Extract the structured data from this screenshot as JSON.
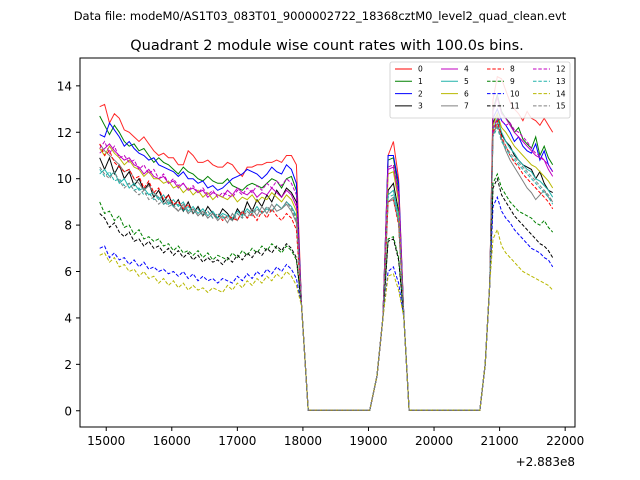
{
  "figure": {
    "suptitle": "Data file: modeM0/AS1T03_083T01_9000002722_18368cztM0_level2_quad_clean.evt"
  },
  "chart_data": {
    "type": "line",
    "title": "Quadrant 2 module wise count rates with 100.0s bins.",
    "xlabel": "",
    "ylabel": "",
    "x_offset_text": "+2.883e8",
    "xlim": [
      14600,
      22150
    ],
    "ylim": [
      -0.7,
      15.2
    ],
    "xticks": [
      15000,
      16000,
      17000,
      18000,
      19000,
      20000,
      21000,
      22000
    ],
    "yticks": [
      0,
      2,
      4,
      6,
      8,
      10,
      12,
      14
    ],
    "grid": false,
    "legend": {
      "placement": "top-right",
      "columns": 4
    },
    "series": [
      {
        "name": "0",
        "color": "#ff0000",
        "dash": "solid",
        "seg1": [
          13.1,
          13.2,
          12.4,
          12.8,
          12.6,
          12.1,
          12.0,
          11.8,
          11.6,
          11.8,
          11.5,
          11.2,
          11.0,
          11.1,
          10.9,
          10.9,
          10.6,
          10.6,
          11.2,
          11.0,
          10.7,
          10.7,
          10.8,
          10.6,
          10.5,
          10.5,
          10.7,
          10.6,
          10.3,
          10.1,
          10.5,
          10.5,
          10.6,
          10.6,
          10.7,
          10.7,
          10.8,
          10.7,
          11.0,
          11.0,
          10.6
        ],
        "peak": [
          11.0,
          11.6,
          10.0
        ],
        "seg3": [
          13.4,
          14.4,
          14.3,
          13.8,
          13.3,
          13.0,
          12.8,
          12.5,
          12.9,
          12.6,
          12.5,
          12.3,
          12.6,
          12.3,
          12.0
        ]
      },
      {
        "name": "1",
        "color": "#008000",
        "dash": "solid",
        "seg1": [
          12.7,
          12.3,
          11.9,
          12.3,
          12.0,
          11.6,
          11.4,
          11.5,
          11.2,
          11.3,
          11.0,
          10.7,
          10.9,
          10.7,
          10.6,
          10.4,
          10.2,
          10.5,
          10.3,
          10.2,
          10.0,
          9.9,
          10.1,
          9.9,
          9.8,
          9.8,
          10.0,
          9.7,
          9.6,
          9.5,
          9.7,
          9.8,
          9.7,
          9.6,
          9.8,
          10.0,
          9.9,
          9.6,
          10.0,
          10.1,
          9.5
        ],
        "peak": [
          10.8,
          10.9,
          9.5
        ],
        "seg3": [
          13.0,
          13.6,
          12.9,
          12.6,
          12.4,
          12.0,
          12.2,
          11.7,
          11.5,
          11.3,
          11.8,
          11.0,
          11.4,
          10.9,
          10.6
        ]
      },
      {
        "name": "2",
        "color": "#0000ff",
        "dash": "solid",
        "seg1": [
          11.9,
          11.8,
          12.4,
          12.1,
          11.8,
          11.4,
          11.6,
          11.3,
          11.1,
          11.0,
          10.8,
          10.9,
          10.6,
          10.5,
          10.4,
          10.3,
          10.1,
          10.3,
          10.0,
          10.0,
          9.8,
          9.9,
          9.6,
          9.7,
          9.5,
          9.6,
          9.8,
          10.0,
          10.1,
          10.2,
          10.4,
          10.3,
          10.2,
          10.0,
          10.2,
          10.5,
          10.3,
          10.2,
          10.6,
          10.4,
          9.8
        ],
        "peak": [
          11.0,
          11.0,
          9.8
        ],
        "seg3": [
          12.6,
          13.0,
          12.5,
          12.3,
          12.0,
          11.6,
          11.8,
          11.4,
          11.2,
          11.1,
          11.5,
          10.8,
          11.2,
          10.6,
          10.3
        ]
      },
      {
        "name": "3",
        "color": "#000000",
        "dash": "solid",
        "seg1": [
          10.9,
          10.4,
          10.9,
          10.2,
          10.6,
          10.0,
          10.3,
          9.7,
          10.0,
          9.5,
          9.8,
          9.2,
          9.5,
          9.0,
          9.3,
          8.8,
          9.1,
          8.6,
          9.0,
          8.5,
          8.8,
          8.4,
          8.8,
          8.5,
          8.3,
          8.7,
          8.5,
          8.2,
          8.7,
          8.4,
          9.0,
          8.6,
          9.1,
          8.8,
          9.3,
          9.0,
          9.5,
          9.2,
          9.6,
          9.4,
          9.0
        ],
        "peak": [
          9.5,
          9.8,
          8.6
        ],
        "seg3": [
          12.4,
          12.8,
          11.9,
          11.6,
          11.4,
          11.0,
          10.8,
          10.6,
          10.5,
          10.4,
          10.0,
          10.3,
          9.8,
          9.5,
          9.4
        ]
      },
      {
        "name": "4",
        "color": "#c000c0",
        "dash": "solid",
        "seg1": [
          11.1,
          11.3,
          11.5,
          11.2,
          11.0,
          10.8,
          10.9,
          10.6,
          10.5,
          10.2,
          10.4,
          10.1,
          10.0,
          10.1,
          9.8,
          9.9,
          9.6,
          9.8,
          9.5,
          9.6,
          9.4,
          9.5,
          9.2,
          9.4,
          9.3,
          9.2,
          9.5,
          9.3,
          9.6,
          9.4,
          9.3,
          9.5,
          9.2,
          9.4,
          9.3,
          9.6,
          9.4,
          9.2,
          9.5,
          9.3,
          8.8
        ],
        "peak": [
          10.4,
          10.5,
          9.2
        ],
        "seg3": [
          12.9,
          13.5,
          12.8,
          12.6,
          12.3,
          12.0,
          11.8,
          11.6,
          11.4,
          11.2,
          11.0,
          10.9,
          10.8,
          10.4,
          10.1
        ]
      },
      {
        "name": "5",
        "color": "#20b2aa",
        "dash": "solid",
        "seg1": [
          10.2,
          10.4,
          10.1,
          10.3,
          9.8,
          10.0,
          9.6,
          9.8,
          9.5,
          9.6,
          9.3,
          9.4,
          9.1,
          9.3,
          8.9,
          9.1,
          8.8,
          9.0,
          8.6,
          8.8,
          8.5,
          8.7,
          8.4,
          8.6,
          8.3,
          8.5,
          8.4,
          8.3,
          8.6,
          8.4,
          8.7,
          8.5,
          8.8,
          8.5,
          8.7,
          8.6,
          8.9,
          8.7,
          9.0,
          8.8,
          8.4
        ],
        "peak": [
          9.3,
          9.5,
          8.4
        ],
        "seg3": [
          12.1,
          12.6,
          12.0,
          11.6,
          11.3,
          11.1,
          10.8,
          10.6,
          10.4,
          10.3,
          10.0,
          9.9,
          9.7,
          9.5,
          9.2
        ]
      },
      {
        "name": "6",
        "color": "#b8b800",
        "dash": "solid",
        "seg1": [
          11.3,
          11.0,
          11.4,
          11.1,
          10.9,
          10.6,
          10.8,
          10.5,
          10.4,
          10.1,
          10.3,
          10.0,
          10.0,
          9.8,
          9.9,
          9.6,
          9.7,
          9.4,
          9.6,
          9.3,
          9.5,
          9.2,
          9.4,
          9.1,
          9.3,
          9.2,
          9.1,
          9.3,
          9.0,
          9.2,
          9.1,
          9.3,
          9.0,
          9.2,
          9.1,
          9.4,
          9.2,
          9.0,
          9.3,
          9.1,
          8.6
        ],
        "peak": [
          10.2,
          10.3,
          9.0
        ],
        "seg3": [
          12.3,
          12.8,
          12.2,
          12.0,
          11.7,
          11.4,
          11.2,
          11.0,
          10.8,
          10.6,
          10.5,
          10.3,
          10.1,
          9.9,
          9.6
        ]
      },
      {
        "name": "7",
        "color": "#808080",
        "dash": "solid",
        "seg1": [
          11.5,
          11.2,
          11.0,
          10.8,
          10.6,
          10.3,
          10.4,
          10.0,
          9.8,
          9.5,
          9.7,
          9.4,
          9.2,
          8.9,
          9.1,
          8.8,
          8.6,
          8.9,
          8.5,
          8.7,
          8.4,
          8.6,
          8.3,
          8.5,
          8.2,
          8.4,
          8.1,
          8.5,
          8.2,
          8.6,
          8.3,
          8.7,
          8.4,
          8.8,
          8.5,
          8.9,
          8.6,
          8.7,
          8.9,
          8.6,
          8.1
        ],
        "peak": [
          9.0,
          9.2,
          8.1
        ],
        "seg3": [
          11.9,
          12.4,
          11.7,
          11.2,
          10.8,
          10.5,
          10.2,
          9.9,
          9.6,
          9.4,
          9.1,
          9.3,
          9.5,
          9.2,
          9.0
        ]
      },
      {
        "name": "8",
        "color": "#ff0000",
        "dash": "dashed",
        "seg1": [
          11.5,
          11.0,
          11.2,
          10.7,
          10.5,
          10.3,
          10.4,
          10.0,
          10.1,
          9.6,
          9.9,
          9.4,
          9.6,
          9.1,
          9.3,
          8.9,
          9.0,
          8.7,
          8.9,
          8.5,
          8.7,
          8.4,
          8.6,
          8.3,
          8.5,
          8.2,
          8.4,
          8.3,
          8.2,
          8.6,
          8.3,
          8.5,
          8.2,
          8.6,
          8.3,
          8.7,
          8.4,
          8.2,
          8.5,
          8.3,
          7.8
        ],
        "peak": [
          9.0,
          9.1,
          8.0
        ],
        "seg3": [
          12.0,
          12.5,
          11.8,
          11.4,
          11.0,
          10.7,
          10.5,
          10.2,
          10.0,
          9.8,
          9.6,
          9.4,
          9.2,
          9.0,
          8.7
        ]
      },
      {
        "name": "9",
        "color": "#008000",
        "dash": "dashed",
        "seg1": [
          9.0,
          8.5,
          8.6,
          8.2,
          8.4,
          7.9,
          8.0,
          7.6,
          7.8,
          7.4,
          7.5,
          7.3,
          7.4,
          7.1,
          7.2,
          6.9,
          7.1,
          6.8,
          6.9,
          6.7,
          6.9,
          6.6,
          6.8,
          6.5,
          6.7,
          6.6,
          6.5,
          6.8,
          6.6,
          6.9,
          6.7,
          7.0,
          6.8,
          7.1,
          6.9,
          7.2,
          7.0,
          6.8,
          7.1,
          6.9,
          6.5
        ],
        "peak": [
          7.4,
          7.5,
          6.6
        ],
        "seg3": [
          9.8,
          10.2,
          9.6,
          9.3,
          9.0,
          8.8,
          8.6,
          8.5,
          8.4,
          8.3,
          8.1,
          8.0,
          8.2,
          7.9,
          7.7
        ]
      },
      {
        "name": "10",
        "color": "#0000ff",
        "dash": "dashed",
        "seg1": [
          7.0,
          7.1,
          6.6,
          6.8,
          6.5,
          6.6,
          6.3,
          6.5,
          6.2,
          6.4,
          6.1,
          6.2,
          6.0,
          6.1,
          5.9,
          6.0,
          5.8,
          6.0,
          5.7,
          5.9,
          5.6,
          5.8,
          5.6,
          5.7,
          5.5,
          5.7,
          5.6,
          5.5,
          5.8,
          5.6,
          5.9,
          5.7,
          6.0,
          5.8,
          6.1,
          5.9,
          6.2,
          6.0,
          6.3,
          6.1,
          5.7
        ],
        "peak": [
          6.0,
          6.2,
          5.5
        ],
        "seg3": [
          8.8,
          9.2,
          8.6,
          8.3,
          8.1,
          7.8,
          7.6,
          7.4,
          7.2,
          7.0,
          6.9,
          6.8,
          6.6,
          6.5,
          6.2
        ]
      },
      {
        "name": "11",
        "color": "#000000",
        "dash": "dashed",
        "seg1": [
          8.5,
          8.3,
          7.9,
          8.1,
          7.7,
          7.5,
          7.7,
          7.3,
          7.4,
          7.1,
          7.3,
          7.0,
          7.1,
          6.8,
          7.0,
          6.7,
          6.9,
          6.6,
          6.8,
          6.5,
          6.7,
          6.4,
          6.6,
          6.4,
          6.5,
          6.3,
          6.6,
          6.4,
          6.7,
          6.5,
          6.8,
          6.6,
          6.9,
          6.7,
          7.0,
          6.8,
          7.1,
          6.9,
          7.2,
          7.0,
          6.6
        ],
        "peak": [
          7.3,
          7.4,
          6.5
        ],
        "seg3": [
          9.6,
          10.0,
          9.3,
          9.0,
          8.7,
          8.4,
          8.2,
          8.0,
          7.8,
          7.6,
          7.4,
          7.2,
          7.1,
          6.9,
          6.6
        ]
      },
      {
        "name": "12",
        "color": "#c000c0",
        "dash": "dashed",
        "seg1": [
          11.3,
          11.6,
          11.1,
          11.4,
          10.9,
          11.0,
          10.7,
          10.8,
          10.4,
          10.6,
          10.2,
          10.4,
          10.0,
          10.2,
          9.8,
          10.0,
          9.7,
          9.8,
          9.5,
          9.7,
          9.4,
          9.6,
          9.3,
          9.5,
          9.2,
          9.4,
          9.3,
          9.2,
          9.5,
          9.3,
          9.6,
          9.4,
          9.7,
          9.5,
          9.8,
          9.6,
          9.9,
          9.7,
          10.0,
          9.8,
          9.3
        ],
        "peak": [
          10.5,
          10.6,
          9.4
        ],
        "seg3": [
          12.2,
          12.6,
          12.5,
          12.3,
          12.4,
          12.1,
          12.0,
          11.8,
          11.6,
          11.3,
          11.1,
          11.0,
          10.8,
          10.6,
          10.3
        ]
      },
      {
        "name": "13",
        "color": "#20b2aa",
        "dash": "dashed",
        "seg1": [
          10.4,
          10.1,
          10.3,
          9.9,
          10.0,
          9.7,
          9.8,
          9.5,
          9.6,
          9.3,
          9.4,
          9.1,
          9.2,
          8.9,
          9.0,
          8.8,
          8.9,
          8.6,
          8.8,
          8.5,
          8.7,
          8.4,
          8.6,
          8.3,
          8.5,
          8.3,
          8.4,
          8.2,
          8.5,
          8.3,
          8.6,
          8.4,
          8.7,
          8.5,
          8.8,
          8.6,
          8.9,
          8.7,
          9.0,
          8.8,
          8.3
        ],
        "peak": [
          9.2,
          9.3,
          8.2
        ],
        "seg3": [
          11.8,
          12.2,
          11.6,
          11.3,
          11.0,
          10.8,
          10.6,
          10.4,
          10.2,
          10.0,
          9.8,
          9.6,
          9.4,
          9.2,
          8.9
        ]
      },
      {
        "name": "14",
        "color": "#b8b800",
        "dash": "dashed",
        "seg1": [
          6.7,
          6.8,
          6.4,
          6.6,
          6.2,
          6.3,
          6.0,
          6.1,
          5.8,
          6.0,
          5.7,
          5.8,
          5.5,
          5.7,
          5.4,
          5.6,
          5.3,
          5.5,
          5.2,
          5.4,
          5.2,
          5.3,
          5.1,
          5.3,
          5.2,
          5.1,
          5.4,
          5.2,
          5.5,
          5.3,
          5.6,
          5.4,
          5.7,
          5.5,
          5.8,
          5.6,
          5.9,
          5.7,
          6.0,
          5.8,
          5.4
        ],
        "peak": [
          5.8,
          5.9,
          5.2
        ],
        "seg3": [
          7.4,
          7.8,
          7.1,
          6.8,
          6.6,
          6.4,
          6.2,
          6.0,
          5.9,
          5.8,
          5.7,
          5.6,
          5.5,
          5.4,
          5.2
        ]
      },
      {
        "name": "15",
        "color": "#808080",
        "dash": "dashed",
        "seg1": [
          10.5,
          10.2,
          10.0,
          10.3,
          9.9,
          9.6,
          9.8,
          9.5,
          9.3,
          9.5,
          9.1,
          9.2,
          8.9,
          9.1,
          8.8,
          8.9,
          8.6,
          8.8,
          8.5,
          8.7,
          8.4,
          8.6,
          8.3,
          8.5,
          8.2,
          8.4,
          8.3,
          8.2,
          8.5,
          8.3,
          8.6,
          8.4,
          8.7,
          8.5,
          8.8,
          8.6,
          8.9,
          8.7,
          9.0,
          8.7,
          8.2
        ],
        "peak": [
          9.0,
          9.1,
          8.1
        ],
        "seg3": [
          11.9,
          12.3,
          11.7,
          11.4,
          11.1,
          10.9,
          10.7,
          10.5,
          10.3,
          10.1,
          9.9,
          9.7,
          9.5,
          9.3,
          9.0
        ]
      }
    ]
  }
}
